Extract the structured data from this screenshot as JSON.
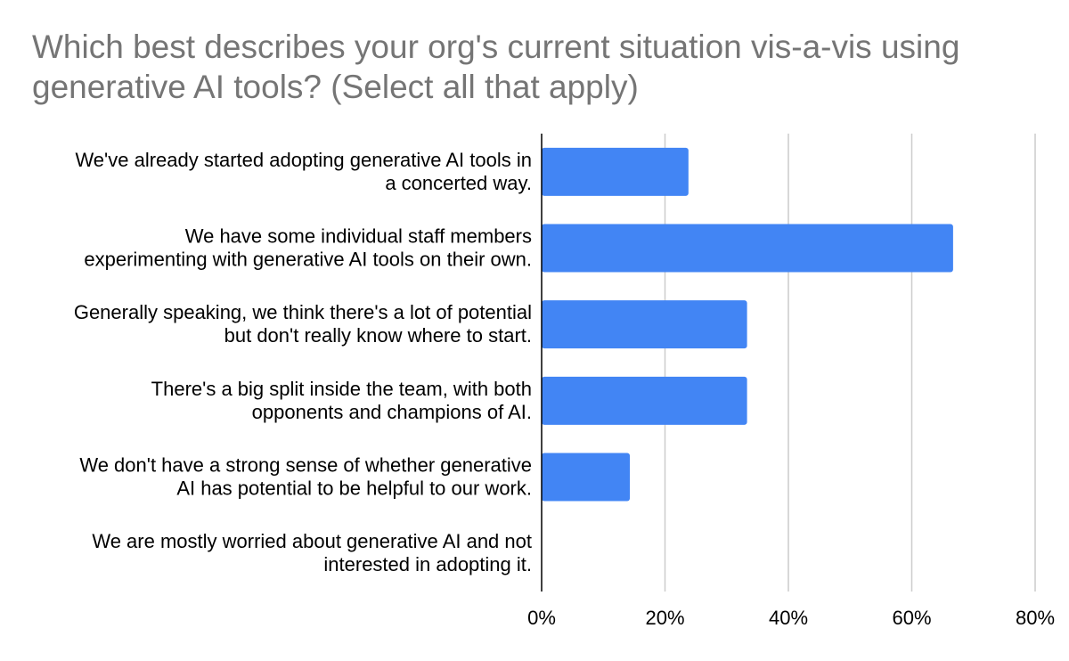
{
  "chart_data": {
    "type": "bar",
    "orientation": "horizontal",
    "title": "Which best describes your org's current situation vis-a-vis using generative AI tools? (Select all that apply)",
    "xlabel": "",
    "ylabel": "",
    "categories": [
      [
        "We've already started adopting generative AI tools in",
        "a concerted way."
      ],
      [
        "We have some individual staff members",
        "experimenting with generative AI tools on their own."
      ],
      [
        "Generally speaking, we think there's a lot of potential",
        "but don't really know where to start."
      ],
      [
        "There's a big split inside the team, with both",
        "opponents and champions of AI."
      ],
      [
        "We don't have a strong sense of whether generative",
        "AI has potential to be helpful to our work."
      ],
      [
        "We are mostly worried about generative AI and not",
        "interested in adopting it."
      ]
    ],
    "values": [
      0.238,
      0.667,
      0.333,
      0.333,
      0.143,
      0.0
    ],
    "xlim": [
      0,
      0.8
    ],
    "xticks": [
      0,
      0.2,
      0.4,
      0.6,
      0.8
    ],
    "xtick_labels": [
      "0%",
      "20%",
      "40%",
      "60%",
      "80%"
    ],
    "grid": "vertical",
    "legend": "none",
    "bar_color": "#4285f4",
    "grid_color": "#cccccc",
    "axis_color": "#000000",
    "title_color": "#757575"
  }
}
